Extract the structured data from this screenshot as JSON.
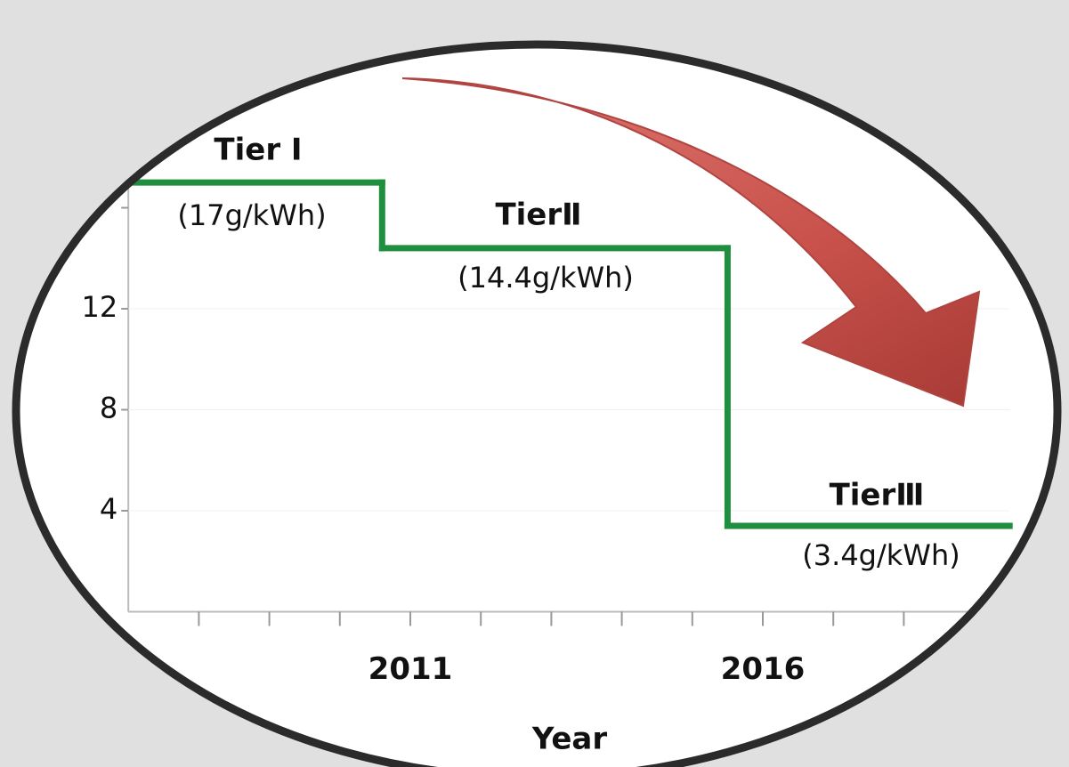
{
  "chart_data": {
    "type": "step",
    "x_label": "Year",
    "x": [
      2007,
      2010.6,
      2015.5
    ],
    "values": [
      17,
      14.4,
      3.4
    ],
    "color": "#1f8f3f",
    "xlim": [
      2007,
      2019.5
    ],
    "ylim": [
      0,
      17.5
    ],
    "xticks": [
      2011,
      2016
    ],
    "x_minor_ticks": [
      2008,
      2009,
      2010,
      2012,
      2013,
      2014,
      2015,
      2017,
      2018
    ],
    "yticks": [
      4,
      8,
      12
    ],
    "y_minor_ticks": [
      16
    ],
    "annotations": [
      "Tier Ⅰ",
      "(17g/kWh)",
      "TierⅡ",
      "(14.4g/kWh)",
      "TierⅢ",
      "(3.4g/kWh)"
    ]
  }
}
